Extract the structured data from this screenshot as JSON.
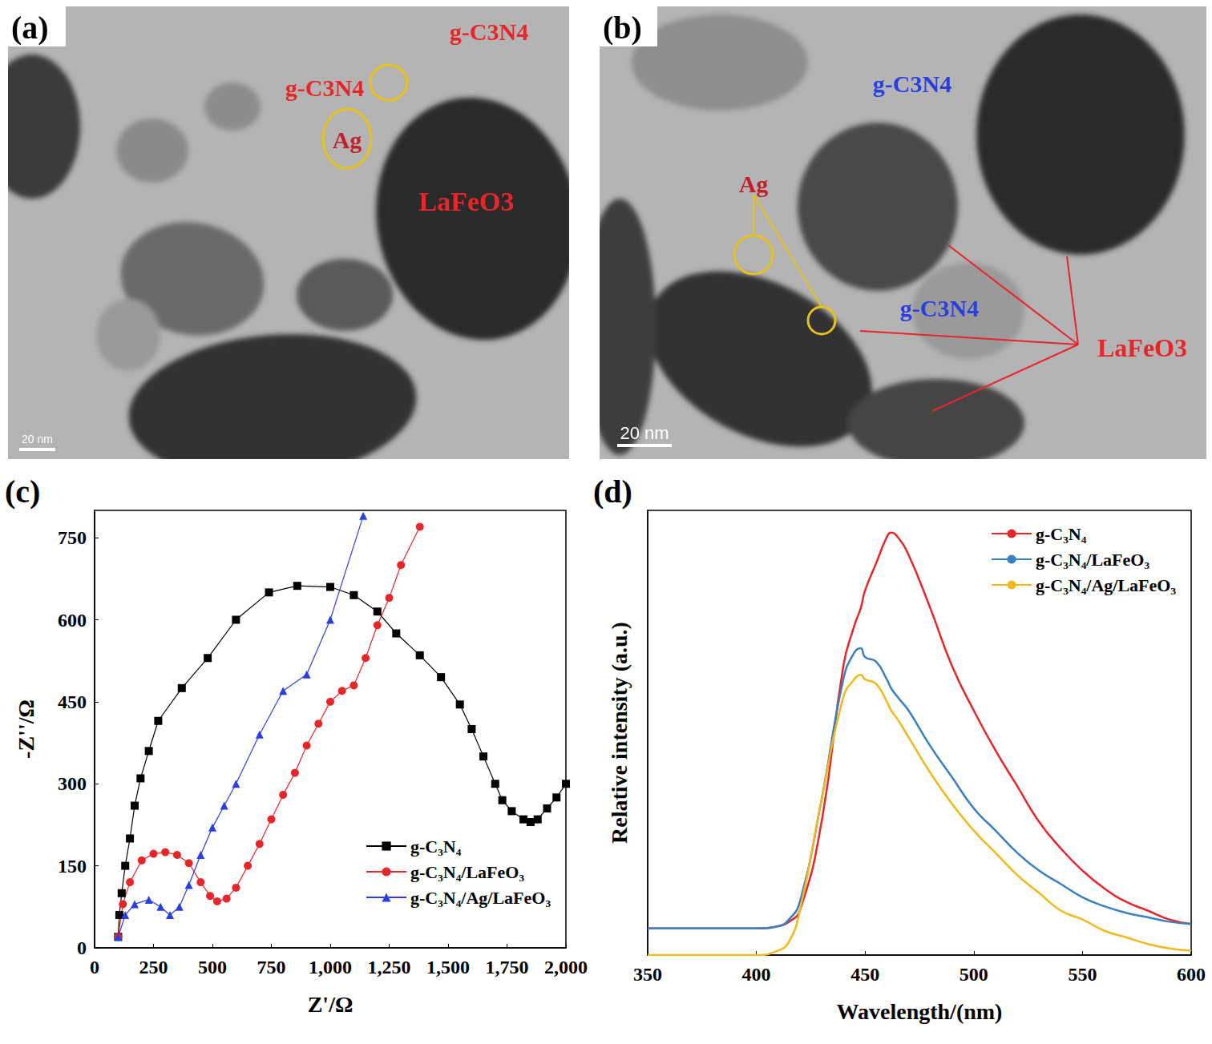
{
  "images": [
    {
      "letter": "(a)",
      "scale_bar": "20 nm",
      "labels": [
        {
          "text": "g-C3N4",
          "color": "#e8262a"
        },
        {
          "text": "g-C3N4",
          "color": "#e8262a"
        },
        {
          "text": "Ag",
          "color": "#c0202a"
        },
        {
          "text": "LaFeO3",
          "color": "#e8262a"
        }
      ]
    },
    {
      "letter": "(b)",
      "scale_bar": "20 nm",
      "labels": [
        {
          "text": "g-C3N4",
          "color": "#2a3fe0"
        },
        {
          "text": "g-C3N4",
          "color": "#2a3fe0"
        },
        {
          "text": "Ag",
          "color": "#c0202a"
        },
        {
          "text": "LaFeO3",
          "color": "#e8262a"
        }
      ]
    }
  ],
  "chart_data": [
    {
      "type": "line",
      "letter": "(c)",
      "x_label": "Z'/Ω",
      "y_label": "-Z''/Ω",
      "xlim": [
        0,
        2000
      ],
      "xticks": [
        0,
        250,
        500,
        750,
        1000,
        1250,
        1500,
        1750,
        2000
      ],
      "ylim": [
        0,
        800
      ],
      "yticks": [
        0,
        150,
        300,
        450,
        600,
        750
      ],
      "grid": false,
      "legend": "lower right",
      "series": [
        {
          "name": "g-C₃N₄",
          "color": "#000000",
          "marker": "square",
          "x": [
            100,
            105,
            115,
            130,
            150,
            170,
            195,
            230,
            270,
            370,
            480,
            600,
            740,
            860,
            1000,
            1100,
            1200,
            1280,
            1380,
            1470,
            1550,
            1600,
            1650,
            1700,
            1730,
            1770,
            1820,
            1850,
            1880,
            1920,
            1960,
            2000
          ],
          "values": [
            20,
            60,
            100,
            150,
            200,
            260,
            310,
            360,
            415,
            475,
            530,
            600,
            650,
            662,
            660,
            645,
            615,
            575,
            535,
            495,
            445,
            400,
            350,
            300,
            270,
            250,
            235,
            230,
            235,
            255,
            275,
            300
          ]
        },
        {
          "name": "g-C₃N₄/LaFeO₃",
          "color": "#e8262a",
          "marker": "circle",
          "x": [
            100,
            120,
            150,
            200,
            250,
            300,
            350,
            400,
            450,
            490,
            520,
            560,
            600,
            650,
            700,
            750,
            800,
            850,
            900,
            950,
            1000,
            1050,
            1100,
            1150,
            1200,
            1250,
            1300,
            1380
          ],
          "values": [
            20,
            80,
            120,
            160,
            172,
            175,
            170,
            155,
            120,
            95,
            85,
            90,
            110,
            150,
            190,
            235,
            280,
            320,
            370,
            410,
            450,
            470,
            480,
            530,
            590,
            640,
            700,
            770
          ]
        },
        {
          "name": "g-C₃N₄/Ag/LaFeO₃",
          "color": "#2a3fe0",
          "marker": "triangle",
          "x": [
            100,
            130,
            170,
            230,
            280,
            320,
            360,
            400,
            450,
            500,
            550,
            600,
            700,
            800,
            900,
            1000,
            1140
          ],
          "values": [
            20,
            60,
            80,
            88,
            75,
            60,
            75,
            115,
            170,
            220,
            260,
            300,
            390,
            470,
            500,
            600,
            790
          ]
        }
      ]
    },
    {
      "type": "line",
      "letter": "(d)",
      "x_label": "Wavelength/(nm)",
      "y_label": "Relative intensity (a.u.)",
      "xlim": [
        350,
        600
      ],
      "xticks": [
        350,
        400,
        450,
        500,
        550,
        600
      ],
      "ylim": [
        0,
        100
      ],
      "tick_labels": "x",
      "grid": false,
      "legend": "upper right",
      "x": [
        350,
        400,
        410,
        415,
        420,
        430,
        440,
        445,
        448,
        450,
        455,
        460,
        462,
        465,
        470,
        480,
        490,
        500,
        510,
        520,
        530,
        540,
        550,
        560,
        570,
        580,
        590,
        600
      ],
      "series": [
        {
          "name": "g-C₃N₄",
          "color": "#e8262a",
          "marker": "none",
          "values": [
            6,
            6,
            6.5,
            7.5,
            10,
            30,
            65,
            74,
            78,
            82,
            88,
            94,
            95,
            94,
            90,
            78,
            65,
            55,
            46,
            38,
            30,
            24,
            19,
            15,
            12,
            10,
            8,
            7
          ]
        },
        {
          "name": "g-C₃N₄/LaFeO₃",
          "color": "#3a7fc0",
          "marker": "none",
          "values": [
            6,
            6,
            6.5,
            8,
            12,
            35,
            62,
            68,
            69,
            67,
            66,
            62,
            60,
            58,
            55,
            47,
            40,
            33,
            28,
            23,
            19,
            16,
            13,
            11,
            9.5,
            8.5,
            7.5,
            7
          ]
        },
        {
          "name": "g-C₃N₄/Ag/LaFeO₃",
          "color": "#f2b81c",
          "marker": "none",
          "values": [
            0,
            0,
            1,
            3,
            10,
            35,
            58,
            62,
            63,
            62,
            61,
            57,
            55,
            53,
            49,
            41,
            34,
            28,
            23,
            18,
            14,
            10,
            8,
            5.5,
            4,
            2.5,
            1.5,
            1
          ]
        }
      ]
    }
  ]
}
